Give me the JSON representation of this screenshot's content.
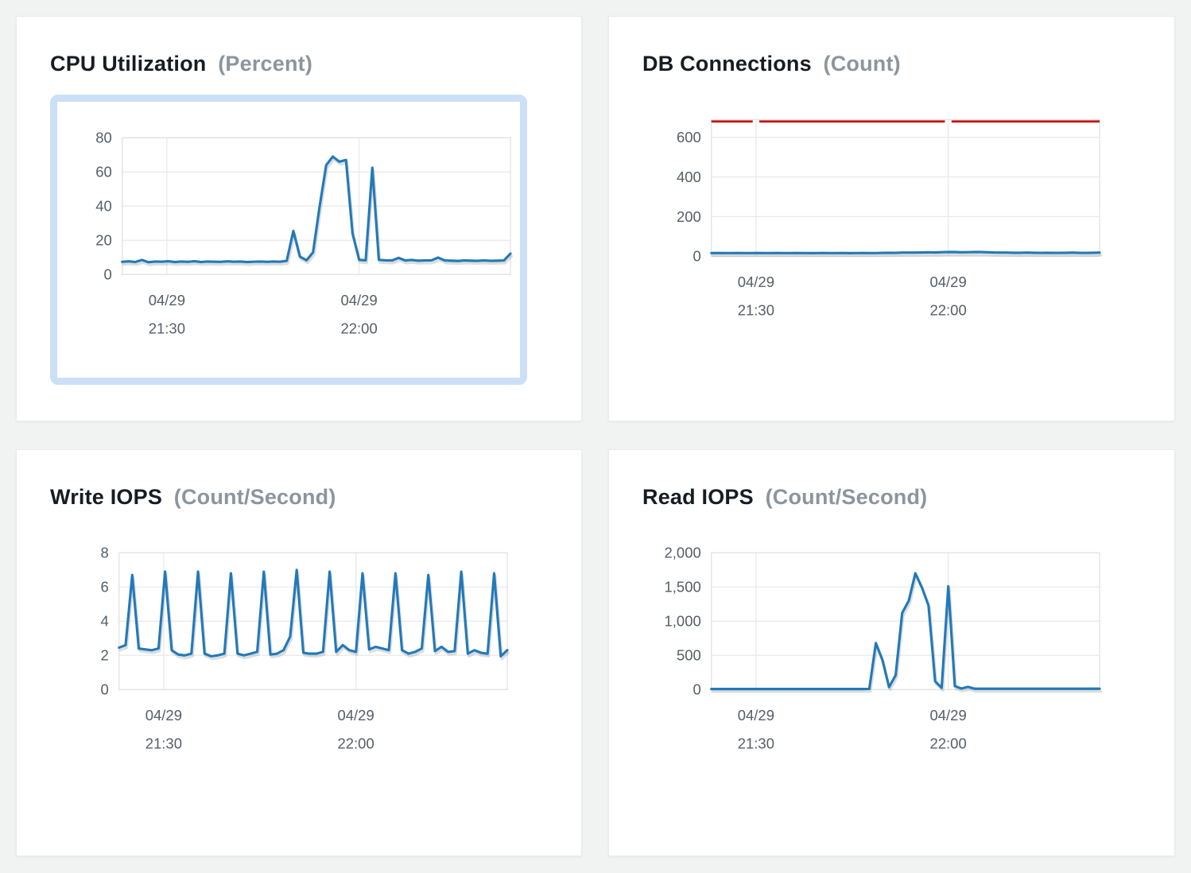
{
  "page": {
    "background_color": "#f1f2f2",
    "card_color": "#ffffff",
    "selection_border_color": "#cbe0f6"
  },
  "style": {
    "grid_color": "#e9e9e9",
    "frame_color": "#e0e3e3",
    "tick_color": "#565e66",
    "shadow_color": "#8f979d",
    "title_color": "#171c23",
    "unit_color": "#8b959e"
  },
  "chart_data": [
    {
      "id": "cpu-utilization",
      "type": "line",
      "title": "CPU Utilization",
      "unit": "(Percent)",
      "selected": true,
      "ylim": [
        0,
        80
      ],
      "y_ticks": [
        {
          "value": 0,
          "label": "0"
        },
        {
          "value": 20,
          "label": "20"
        },
        {
          "value": 40,
          "label": "40"
        },
        {
          "value": 60,
          "label": "60"
        },
        {
          "value": 80,
          "label": "80"
        }
      ],
      "x_ticks": [
        {
          "frac": 0.115,
          "line1": "04/29",
          "line2": "21:30"
        },
        {
          "frac": 0.61,
          "line1": "04/29",
          "line2": "22:00"
        }
      ],
      "line_color": "#2379b8",
      "values": [
        7.4,
        7.7,
        7.3,
        8.5,
        7.2,
        7.6,
        7.5,
        7.8,
        7.3,
        7.6,
        7.4,
        7.8,
        7.3,
        7.6,
        7.5,
        7.4,
        7.7,
        7.5,
        7.6,
        7.3,
        7.5,
        7.6,
        7.4,
        7.6,
        7.5,
        8.0,
        25.5,
        10.5,
        8.3,
        13,
        40,
        64,
        69,
        66,
        67,
        24,
        8.6,
        8.3,
        62.5,
        8.6,
        8.3,
        8.2,
        9.7,
        8.2,
        8.5,
        8.1,
        8.2,
        8.3,
        9.9,
        8.2,
        8.1,
        7.9,
        8.2,
        8.1,
        8.0,
        8.2,
        8.0,
        8.1,
        8.2,
        12.2
      ]
    },
    {
      "id": "db-connections",
      "type": "line",
      "title": "DB Connections",
      "unit": "(Count)",
      "selected": false,
      "ylim": [
        0,
        690
      ],
      "y_ticks": [
        {
          "value": 0,
          "label": "0"
        },
        {
          "value": 200,
          "label": "200"
        },
        {
          "value": 400,
          "label": "400"
        },
        {
          "value": 600,
          "label": "600"
        }
      ],
      "x_ticks": [
        {
          "frac": 0.115,
          "line1": "04/29",
          "line2": "21:30"
        },
        {
          "frac": 0.61,
          "line1": "04/29",
          "line2": "22:00"
        }
      ],
      "line_color": "#2379b8",
      "annotation": {
        "value": 680,
        "color": "#c50d0e"
      },
      "values": [
        16,
        16.5,
        16,
        16,
        16.5,
        16,
        16,
        16.5,
        16,
        16,
        16.5,
        16,
        16,
        16.5,
        16,
        15.5,
        16,
        16.5,
        16,
        16,
        16.5,
        15.5,
        16,
        16.5,
        16,
        16,
        17,
        17.5,
        17,
        18,
        18.5,
        18,
        19,
        19.5,
        19,
        20.5,
        21.5,
        21,
        20,
        20.5,
        21.5,
        21,
        20,
        19,
        18.5,
        18,
        17.5,
        17.5,
        18,
        17.5,
        17,
        17.5,
        17,
        17,
        17.5,
        18,
        17,
        17,
        17.5,
        18
      ]
    },
    {
      "id": "write-iops",
      "type": "line",
      "title": "Write IOPS",
      "unit": "(Count/Second)",
      "selected": false,
      "ylim": [
        0,
        8
      ],
      "y_ticks": [
        {
          "value": 0,
          "label": "0"
        },
        {
          "value": 2,
          "label": "2"
        },
        {
          "value": 4,
          "label": "4"
        },
        {
          "value": 6,
          "label": "6"
        },
        {
          "value": 8,
          "label": "8"
        }
      ],
      "x_ticks": [
        {
          "frac": 0.115,
          "line1": "04/29",
          "line2": "21:30"
        },
        {
          "frac": 0.61,
          "line1": "04/29",
          "line2": "22:00"
        }
      ],
      "line_color": "#2379b8",
      "values": [
        2.45,
        2.6,
        6.7,
        2.4,
        2.35,
        2.3,
        2.4,
        6.9,
        2.3,
        2.05,
        2.0,
        2.1,
        6.9,
        2.1,
        1.95,
        2.0,
        2.1,
        6.8,
        2.1,
        2.0,
        2.1,
        2.2,
        6.9,
        2.05,
        2.1,
        2.3,
        3.1,
        7.0,
        2.15,
        2.1,
        2.1,
        2.2,
        6.9,
        2.2,
        2.6,
        2.3,
        2.2,
        6.8,
        2.35,
        2.5,
        2.4,
        2.3,
        6.8,
        2.3,
        2.1,
        2.2,
        2.4,
        6.7,
        2.25,
        2.5,
        2.2,
        2.25,
        6.9,
        2.1,
        2.3,
        2.15,
        2.1,
        6.8,
        1.95,
        2.3
      ]
    },
    {
      "id": "read-iops",
      "type": "line",
      "title": "Read IOPS",
      "unit": "(Count/Second)",
      "selected": false,
      "ylim": [
        0,
        2000
      ],
      "y_ticks": [
        {
          "value": 0,
          "label": "0"
        },
        {
          "value": 500,
          "label": "500"
        },
        {
          "value": 1000,
          "label": "1,000"
        },
        {
          "value": 1500,
          "label": "1,500"
        },
        {
          "value": 2000,
          "label": "2,000"
        }
      ],
      "x_ticks": [
        {
          "frac": 0.115,
          "line1": "04/29",
          "line2": "21:30"
        },
        {
          "frac": 0.61,
          "line1": "04/29",
          "line2": "22:00"
        }
      ],
      "line_color": "#2379b8",
      "values": [
        8,
        8,
        8,
        8,
        8,
        8,
        8,
        8,
        8,
        8,
        8,
        8,
        8,
        8,
        8,
        8,
        8,
        8,
        8,
        8,
        8,
        8,
        8,
        8,
        10,
        680,
        430,
        35,
        210,
        1120,
        1300,
        1700,
        1490,
        1230,
        120,
        25,
        1510,
        50,
        15,
        40,
        12,
        12,
        12,
        12,
        12,
        12,
        12,
        12,
        12,
        12,
        12,
        12,
        12,
        12,
        12,
        12,
        12,
        12,
        12,
        12
      ]
    }
  ]
}
